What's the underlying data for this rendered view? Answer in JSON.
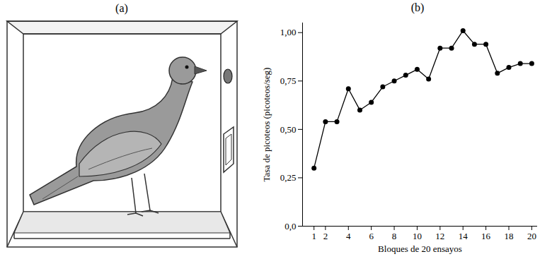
{
  "chart_data": [
    {
      "type": "illustration",
      "title": "(a)"
    },
    {
      "type": "line",
      "title": "(b)",
      "x": [
        1,
        2,
        3,
        4,
        5,
        6,
        7,
        8,
        9,
        10,
        11,
        12,
        13,
        14,
        15,
        16,
        17,
        18,
        19,
        20
      ],
      "values": [
        0.3,
        0.54,
        0.54,
        0.71,
        0.6,
        0.64,
        0.72,
        0.75,
        0.78,
        0.81,
        0.76,
        0.92,
        0.92,
        1.01,
        0.94,
        0.94,
        0.79,
        0.82,
        0.84,
        0.84
      ],
      "color": "#000000",
      "marker": "circle",
      "xlabel": "Bloques de 20 ensayos",
      "ylabel": "Tasa de picoteos (picoteos/seg)",
      "xlim": [
        0,
        20.5
      ],
      "ylim": [
        0,
        1.05
      ],
      "xticks": [
        1,
        2,
        4,
        6,
        8,
        10,
        12,
        14,
        16,
        18,
        20
      ],
      "yticks": [
        {
          "value": 0,
          "label": "0,0"
        },
        {
          "value": 0.25,
          "label": "0,25"
        },
        {
          "value": 0.5,
          "label": "0,50"
        },
        {
          "value": 0.75,
          "label": "0,75"
        },
        {
          "value": 1,
          "label": "1,00"
        }
      ],
      "grid": false
    }
  ]
}
